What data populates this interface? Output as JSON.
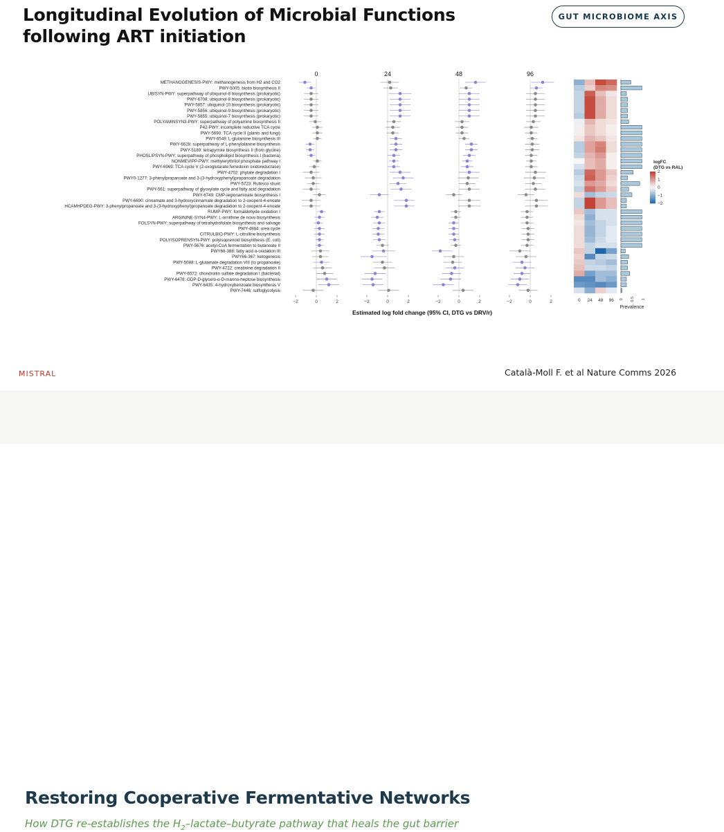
{
  "slide": {
    "title_line1": "Longitudinal Evolution of Microbial Functions",
    "title_line2": "following ART initiation",
    "badge": "GUT MICROBIOME AXIS",
    "brand": "MISTRAL",
    "citation": "Català-Moll F. et al Nature Comms 2026",
    "next_title": "Restoring Cooperative Fermentative Networks",
    "next_caption_before": "How DTG re-establishes the H",
    "next_caption_sub": "2",
    "next_caption_after": "–lactate–butyrate pathway that heals the gut barrier"
  },
  "chart_data": {
    "type": "scatter",
    "subtype": "forest-plot-with-heatmap",
    "xlabel": "Estimated log fold change (95% CI, DTG vs DRV/r)",
    "panels": [
      "0",
      "24",
      "48",
      "96"
    ],
    "xticks": [
      -2,
      0,
      2
    ],
    "xlim": [
      -2.6,
      2.6
    ],
    "colors": {
      "significant": "#8b84d6",
      "not_significant": "#8a8a8a",
      "positive": "#c0392b",
      "negative": "#3a7fc2",
      "bar": "#aac8dc"
    },
    "pathways": [
      "METHANOGENESIS-PWY: methanogenesis from H2 and CO2",
      "PWY-5005: biotin biosynthesis II",
      "UBISYN-PWY: superpathway of ubiquinol-8 biosynthesis (prokaryotic)",
      "PWY-6708: ubiquinol-8 biosynthesis (prokaryotic)",
      "PWY-5857: ubiquinol-10 biosynthesis (prokaryotic)",
      "PWY-5856: ubiquinol-9 biosynthesis (prokaryotic)",
      "PWY-5855: ubiquinol-7 biosynthesis (prokaryotic)",
      "POLYAMINSYN3-PWY: superpathway of polyamine biosynthesis II",
      "P42-PWY: incomplete reductive TCA cycle",
      "PWY-5690: TCA cycle II (plants and fungi)",
      "PWY-6549: L-glutamine biosynthesis III",
      "PWY-6628: superpathway of L-phenylalanine biosynthesis",
      "PWY-5189: tetrapyrrole biosynthesis II (from glycine)",
      "PHOSLIPSYN-PWY: superpathway of phospholipid biosynthesis I (bacteria)",
      "NONMEVIPP-PWY: methylerythritol phosphate pathway I",
      "PWY-6969: TCA cycle V (2-oxoglutarate:ferredoxin oxidoreductase)",
      "PWY-4702: phytate degradation I",
      "PWY0-1277: 3-phenylpropanoate and 3-(3-hydroxyphenyl)propanoate degradation",
      "PWY-5723: Rubisco shunt",
      "PWY-561: superpathway of glyoxylate cycle and fatty acid degradation",
      "PWY-6749: CMP-legionaminate biosynthesis I",
      "PWY-6690: cinnamate and 3-hydroxycinnamate degradation to 2-oxopent-4-enoate",
      "HCAMHPDEG-PWY: 3-phenylpropanoate and 3-(3-hydroxyphenyl)propanoate degradation to 2-oxopent-4-enoate",
      "RUMP-PWY: formaldehyde oxidation I",
      "ARGININE-SYN4-PWY: L-ornithine de novo  biosynthesis",
      "FOLSYN-PWY: superpathway of tetrahydrofolate biosynthesis and salvage",
      "PWY-4984: urea cycle",
      "CITRULBIO-PWY: L-citrulline biosynthesis",
      "POLYISOPRENSYN-PWY: polyisoprenoid biosynthesis (E. coli)",
      "PWY-5676: acetyl-CoA fermentation to butanoate II",
      "PWY66-388: fatty acid &alpha;-oxidation III",
      "PWY66-367: ketogenesis",
      "PWY-5088: L-glutamate degradation VIII (to propanoate)",
      "PWY-4722: creatinine degradation II",
      "PWY-6572: chondroitin sulfate degradation I (bacterial)",
      "PWY-6478: GDP-D-glycero-&alpha;-D-manno-heptose biosynthesis",
      "PWY-6435: 4-hydroxybenzoate biosynthesis V",
      "PWY-7446: sulfoglycolysis"
    ],
    "estimates": [
      [
        -1.1,
        0.2,
        1.6,
        1.2
      ],
      [
        -0.5,
        0.3,
        0.7,
        0.6
      ],
      [
        -0.5,
        1.2,
        1.0,
        0.5
      ],
      [
        -0.5,
        1.2,
        1.0,
        0.5
      ],
      [
        -0.5,
        1.2,
        1.0,
        0.5
      ],
      [
        -0.5,
        1.2,
        1.0,
        0.5
      ],
      [
        -0.5,
        1.2,
        1.0,
        0.5
      ],
      [
        -0.1,
        0.6,
        0.3,
        0.3
      ],
      [
        0.1,
        0.5,
        0.3,
        0.1
      ],
      [
        0.1,
        0.5,
        0.3,
        0.1
      ],
      [
        0.1,
        0.8,
        0.5,
        0.2
      ],
      [
        -0.6,
        0.8,
        1.2,
        0.2
      ],
      [
        -0.6,
        0.8,
        1.2,
        0.2
      ],
      [
        -0.5,
        0.6,
        1.0,
        0.1
      ],
      [
        0.1,
        0.6,
        0.8,
        0.1
      ],
      [
        -0.2,
        0.6,
        0.8,
        0.1
      ],
      [
        -0.5,
        1.2,
        1.0,
        0.5
      ],
      [
        -0.3,
        1.5,
        0.9,
        0.4
      ],
      [
        -0.3,
        1.0,
        0.8,
        0.3
      ],
      [
        -0.5,
        1.3,
        1.0,
        0.5
      ],
      [
        0.3,
        -0.8,
        -0.5,
        -0.4
      ],
      [
        -0.5,
        1.8,
        1.0,
        0.6
      ],
      [
        -0.5,
        1.8,
        1.0,
        0.6
      ],
      [
        0.5,
        -0.8,
        -0.3,
        -0.3
      ],
      [
        0.3,
        -1.0,
        -0.3,
        -0.3
      ],
      [
        0.2,
        -0.8,
        -0.5,
        -0.3
      ],
      [
        0.3,
        -0.9,
        -0.5,
        -0.2
      ],
      [
        0.3,
        -0.9,
        -0.5,
        -0.2
      ],
      [
        0.3,
        -0.8,
        -0.4,
        -0.2
      ],
      [
        0.3,
        -0.5,
        -0.3,
        -0.3
      ],
      [
        0.4,
        -0.4,
        -1.8,
        -1.0
      ],
      [
        0.4,
        -1.5,
        -0.5,
        -0.4
      ],
      [
        0.5,
        -0.5,
        -0.6,
        -0.8
      ],
      [
        0.6,
        -0.3,
        -0.4,
        -0.5
      ],
      [
        0.8,
        -1.2,
        -0.7,
        -0.8
      ],
      [
        1.0,
        -1.5,
        -0.8,
        -1.0
      ],
      [
        1.2,
        -1.4,
        -1.5,
        -1.2
      ],
      [
        -0.3,
        0.1,
        0.4,
        -0.2
      ]
    ],
    "ci_halfwidth": [
      [
        0.6,
        0.9,
        1.0,
        1.1
      ],
      [
        0.4,
        0.7,
        0.6,
        0.6
      ],
      [
        0.7,
        1.1,
        1.0,
        0.9
      ],
      [
        0.7,
        1.0,
        1.0,
        0.9
      ],
      [
        0.7,
        1.0,
        1.0,
        0.9
      ],
      [
        0.7,
        1.0,
        1.0,
        0.9
      ],
      [
        0.7,
        1.0,
        1.0,
        0.9
      ],
      [
        0.6,
        0.7,
        0.7,
        0.7
      ],
      [
        0.5,
        0.7,
        0.6,
        0.7
      ],
      [
        0.5,
        0.6,
        0.6,
        0.6
      ],
      [
        0.4,
        0.6,
        0.5,
        0.5
      ],
      [
        0.4,
        0.6,
        0.6,
        0.7
      ],
      [
        0.4,
        0.6,
        0.6,
        0.7
      ],
      [
        0.4,
        0.6,
        0.6,
        0.6
      ],
      [
        0.4,
        0.5,
        0.5,
        0.5
      ],
      [
        0.5,
        0.6,
        0.6,
        0.6
      ],
      [
        0.8,
        1.0,
        1.0,
        1.0
      ],
      [
        0.8,
        1.0,
        1.0,
        1.0
      ],
      [
        0.6,
        0.8,
        0.8,
        0.8
      ],
      [
        0.8,
        1.0,
        1.0,
        1.0
      ],
      [
        0.6,
        0.9,
        0.8,
        0.8
      ],
      [
        0.9,
        1.2,
        1.1,
        1.1
      ],
      [
        0.9,
        1.2,
        1.1,
        1.1
      ],
      [
        0.4,
        0.5,
        0.5,
        0.6
      ],
      [
        0.5,
        0.6,
        0.5,
        0.6
      ],
      [
        0.4,
        0.6,
        0.5,
        0.6
      ],
      [
        0.5,
        0.6,
        0.5,
        0.6
      ],
      [
        0.5,
        0.6,
        0.5,
        0.6
      ],
      [
        0.4,
        0.6,
        0.5,
        0.6
      ],
      [
        0.4,
        0.6,
        0.5,
        0.6
      ],
      [
        0.9,
        1.1,
        1.2,
        1.0
      ],
      [
        0.8,
        1.4,
        1.0,
        1.0
      ],
      [
        0.8,
        0.9,
        0.9,
        0.9
      ],
      [
        0.9,
        1.0,
        0.9,
        0.9
      ],
      [
        0.8,
        1.0,
        0.9,
        0.8
      ],
      [
        1.0,
        1.0,
        1.0,
        0.9
      ],
      [
        1.0,
        1.0,
        1.0,
        0.9
      ],
      [
        1.0,
        1.0,
        1.0,
        0.9
      ]
    ],
    "significant": [
      [
        1,
        0,
        1,
        1
      ],
      [
        1,
        0,
        0,
        1
      ],
      [
        0,
        1,
        1,
        0
      ],
      [
        0,
        1,
        1,
        0
      ],
      [
        0,
        1,
        1,
        0
      ],
      [
        0,
        1,
        1,
        0
      ],
      [
        0,
        1,
        1,
        0
      ],
      [
        0,
        0,
        0,
        0
      ],
      [
        0,
        0,
        0,
        0
      ],
      [
        0,
        0,
        0,
        0
      ],
      [
        0,
        1,
        0,
        0
      ],
      [
        1,
        1,
        1,
        0
      ],
      [
        1,
        1,
        1,
        0
      ],
      [
        1,
        1,
        1,
        0
      ],
      [
        0,
        1,
        1,
        0
      ],
      [
        0,
        1,
        1,
        0
      ],
      [
        0,
        1,
        1,
        0
      ],
      [
        0,
        1,
        0,
        0
      ],
      [
        0,
        1,
        0,
        0
      ],
      [
        0,
        1,
        0,
        0
      ],
      [
        0,
        1,
        0,
        0
      ],
      [
        0,
        1,
        0,
        0
      ],
      [
        0,
        1,
        0,
        0
      ],
      [
        1,
        1,
        0,
        0
      ],
      [
        1,
        1,
        0,
        0
      ],
      [
        1,
        1,
        1,
        0
      ],
      [
        1,
        1,
        1,
        0
      ],
      [
        1,
        1,
        1,
        0
      ],
      [
        1,
        1,
        1,
        0
      ],
      [
        1,
        0,
        0,
        0
      ],
      [
        0,
        1,
        1,
        0
      ],
      [
        0,
        1,
        0,
        0
      ],
      [
        1,
        0,
        0,
        1
      ],
      [
        0,
        0,
        1,
        1
      ],
      [
        0,
        1,
        1,
        1
      ],
      [
        1,
        1,
        1,
        1
      ],
      [
        1,
        1,
        1,
        1
      ],
      [
        0,
        0,
        0,
        0
      ]
    ],
    "heatmap": {
      "columns": [
        "0",
        "24",
        "48",
        "96"
      ],
      "legend_title": "logFC\n(DTG vs RAL)",
      "legend_ticks": [
        "2",
        "1",
        "0",
        "-1",
        "-2"
      ],
      "values": [
        [
          -1.0,
          0.6,
          1.8,
          1.5
        ],
        [
          -0.6,
          0.4,
          1.2,
          1.1
        ],
        [
          -0.5,
          1.6,
          0.6,
          0.2
        ],
        [
          -0.5,
          1.8,
          0.8,
          0.3
        ],
        [
          -0.5,
          1.8,
          0.8,
          0.3
        ],
        [
          -0.5,
          1.8,
          0.8,
          0.3
        ],
        [
          -0.6,
          1.8,
          0.8,
          0.3
        ],
        [
          -0.1,
          0.7,
          0.3,
          0.2
        ],
        [
          0.1,
          0.5,
          0.3,
          0.1
        ],
        [
          0.1,
          0.5,
          0.3,
          0.1
        ],
        [
          0.2,
          0.7,
          0.5,
          0.2
        ],
        [
          -0.6,
          0.9,
          1.2,
          0.3
        ],
        [
          -0.6,
          0.9,
          1.3,
          0.3
        ],
        [
          -0.5,
          0.7,
          1.0,
          0.1
        ],
        [
          0.0,
          0.6,
          0.8,
          0.1
        ],
        [
          -0.3,
          0.6,
          0.8,
          0.1
        ],
        [
          -0.6,
          1.5,
          1.0,
          0.5
        ],
        [
          -0.4,
          1.6,
          1.0,
          0.4
        ],
        [
          -0.3,
          1.0,
          0.8,
          0.3
        ],
        [
          -0.5,
          1.4,
          1.0,
          0.5
        ],
        [
          0.3,
          -0.8,
          -0.5,
          -0.4
        ],
        [
          -0.5,
          1.9,
          1.0,
          0.6
        ],
        [
          -0.5,
          1.9,
          1.0,
          0.6
        ],
        [
          0.5,
          -0.8,
          -0.3,
          -0.3
        ],
        [
          0.3,
          -1.0,
          -0.3,
          -0.3
        ],
        [
          0.2,
          -0.8,
          -0.5,
          -0.3
        ],
        [
          0.3,
          -0.9,
          -0.5,
          -0.2
        ],
        [
          0.3,
          -0.9,
          -0.5,
          -0.2
        ],
        [
          0.3,
          -0.8,
          -0.4,
          -0.2
        ],
        [
          0.3,
          -0.5,
          -0.3,
          -0.3
        ],
        [
          0.5,
          -0.5,
          -2.0,
          -1.2
        ],
        [
          0.4,
          -1.5,
          -0.5,
          -0.4
        ],
        [
          0.5,
          -0.5,
          -0.6,
          -0.8
        ],
        [
          0.6,
          -0.4,
          -0.4,
          -0.5
        ],
        [
          0.8,
          -1.2,
          -0.8,
          -0.8
        ],
        [
          -1.5,
          -1.5,
          -0.8,
          -1.0
        ],
        [
          -1.3,
          -1.4,
          -1.5,
          -1.3
        ],
        [
          -0.3,
          -1.0,
          0.4,
          -0.2
        ]
      ]
    },
    "prevalence": {
      "label": "Prevalence",
      "ticks": [
        "0",
        "0.5",
        "1"
      ],
      "values": [
        0.45,
        0.95,
        0.25,
        0.3,
        0.3,
        0.3,
        0.3,
        0.35,
        0.95,
        0.95,
        0.95,
        0.95,
        0.95,
        0.95,
        0.95,
        0.95,
        0.55,
        0.3,
        0.85,
        0.35,
        0.5,
        0.25,
        0.25,
        0.95,
        0.95,
        0.95,
        0.95,
        0.95,
        0.95,
        0.95,
        0.2,
        0.35,
        0.3,
        0.3,
        0.4,
        0.25,
        0.25,
        0.05
      ]
    }
  }
}
